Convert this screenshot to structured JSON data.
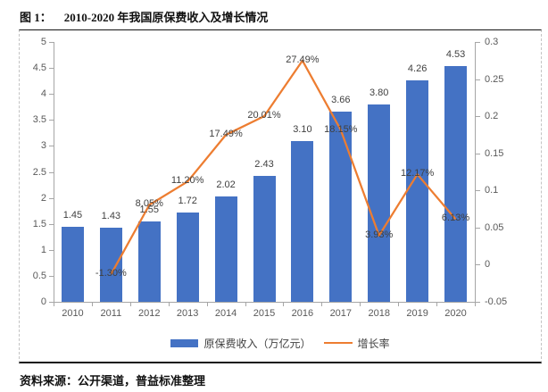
{
  "figure": {
    "label": "图 1：",
    "title": "2010-2020 年我国原保费收入及增长情况",
    "source": "资料来源：公开渠道，普益标准整理"
  },
  "legend": [
    {
      "swatch": "bar",
      "label": "原保费收入（万亿元）",
      "color": "#4472C4"
    },
    {
      "swatch": "line",
      "label": "增长率",
      "color": "#ED7D31"
    }
  ],
  "chart_data": {
    "type": "combo bar+line",
    "title": "2010-2020 年我国原保费收入及增长情况",
    "categories": [
      "2010",
      "2011",
      "2012",
      "2013",
      "2014",
      "2015",
      "2016",
      "2017",
      "2018",
      "2019",
      "2020"
    ],
    "series": [
      {
        "name": "原保费收入（万亿元）",
        "chart_type": "bar",
        "axis": "left",
        "color": "#4472C4",
        "values": [
          1.45,
          1.43,
          1.55,
          1.72,
          2.02,
          2.43,
          3.1,
          3.66,
          3.8,
          4.26,
          4.53
        ],
        "labels": [
          "1.45",
          "1.43",
          "1.55",
          "1.72",
          "2.02",
          "2.43",
          "3.10",
          "3.66",
          "3.80",
          "4.26",
          "4.53"
        ]
      },
      {
        "name": "增长率",
        "chart_type": "line",
        "axis": "right",
        "color": "#ED7D31",
        "values": [
          null,
          -0.013,
          0.0805,
          0.112,
          0.1749,
          0.2001,
          0.2749,
          0.1815,
          0.0393,
          0.1217,
          0.0613
        ],
        "labels": [
          null,
          "-1.30%",
          "8.05%",
          "11.20%",
          "17.49%",
          "20.01%",
          "27.49%",
          "18.15%",
          "3.93%",
          "12.17%",
          "6.13%"
        ]
      }
    ],
    "left_axis": {
      "min": 0,
      "max": 5,
      "tick_labels_top_to_bottom": [
        "5",
        "4.5",
        "4",
        "3.5",
        "3",
        "2.5",
        "2",
        "1.5",
        "1",
        "0.5",
        "0"
      ]
    },
    "right_axis": {
      "min": -0.05,
      "max": 0.3,
      "tick_labels_top_to_bottom": [
        "0.3",
        "0.25",
        "0.2",
        "0.15",
        "0.1",
        "0.05",
        "0",
        "-0.05"
      ]
    },
    "grid": false,
    "legend_position": "bottom",
    "colors": {
      "bar": "#4472C4",
      "line": "#ED7D31",
      "axis": "#A6A6A6",
      "tick_text": "#595959",
      "data_label": "#404040"
    }
  }
}
